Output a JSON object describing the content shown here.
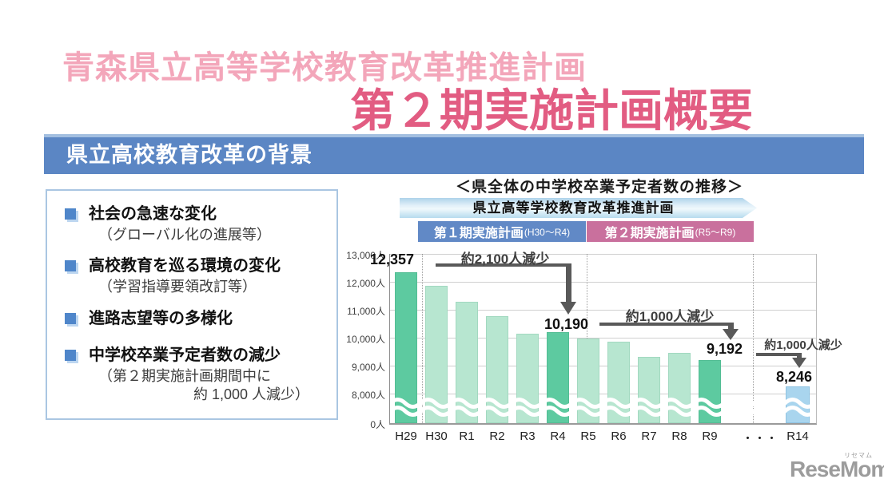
{
  "title": {
    "line1": "青森県立高等学校教育改革推進計画",
    "line2": "第２期実施計画概要"
  },
  "section_header": {
    "label": "県立高校教育改革の背景"
  },
  "background_box": {
    "items": [
      {
        "main": "社会の急速な変化",
        "sub": "（グローバル化の進展等）"
      },
      {
        "main": "高校教育を巡る環境の変化",
        "sub": "（学習指導要領改訂等）"
      },
      {
        "main": "進路志望等の多様化",
        "sub": ""
      },
      {
        "main": "中学校卒業予定者数の減少",
        "sub": "（第２期実施計画期間中に",
        "sub2": "約 1,000 人減少）"
      }
    ]
  },
  "chart": {
    "banner": "県立高等学校教育改革推進計画",
    "period1": {
      "label": "第１期実施計画",
      "range": "(H30～R4)",
      "color": "#6189c6"
    },
    "period2": {
      "label": "第２期実施計画",
      "range": "(R5～R9)",
      "color": "#c9709d"
    }
  },
  "chart_data": {
    "type": "bar",
    "title": "＜県全体の中学校卒業予定者数の推移＞",
    "categories": [
      "H29",
      "H30",
      "R1",
      "R2",
      "R3",
      "R4",
      "R5",
      "R6",
      "R7",
      "R8",
      "R9",
      "R14"
    ],
    "values": [
      12357,
      11850,
      11280,
      10780,
      10130,
      10190,
      9960,
      9850,
      9310,
      9450,
      9192,
      8246
    ],
    "x_ticks": [
      "H29",
      "H30",
      "R1",
      "R2",
      "R3",
      "R4",
      "R5",
      "R6",
      "R7",
      "R8",
      "R9",
      "・・・",
      "R14"
    ],
    "y_ticks": [
      "13,000人",
      "12,000人",
      "11,000人",
      "10,000人",
      "9,000人",
      "8,000人",
      "0人"
    ],
    "ylim": [
      0,
      13000
    ],
    "axis_break_between": [
      0,
      8000
    ],
    "grid": true,
    "highlighted": [
      "H29",
      "R4",
      "R9"
    ],
    "future": [
      "R14"
    ],
    "colors": {
      "normal": "#b7e6d0",
      "highlight": "#5dcaa0",
      "future": "#a9d5ee"
    },
    "point_labels": [
      {
        "category": "H29",
        "text": "12,357"
      },
      {
        "category": "R4",
        "text": "10,190"
      },
      {
        "category": "R9",
        "text": "9,192"
      },
      {
        "category": "R14",
        "text": "8,246"
      }
    ],
    "annotations": [
      "約2,100人減少",
      "約1,000人減少",
      "約1,000人減少"
    ]
  },
  "logo": {
    "text": "ReseMom.",
    "ruby": "リセマム"
  }
}
